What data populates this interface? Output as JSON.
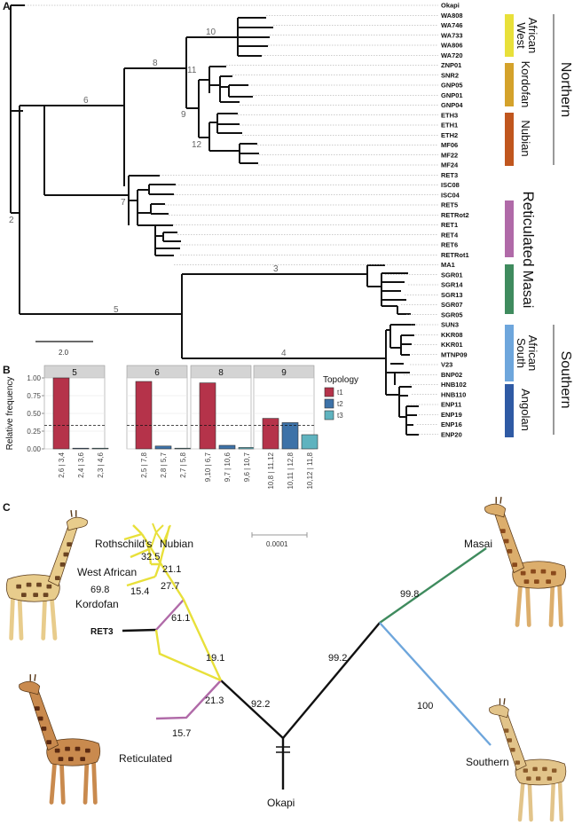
{
  "panels": {
    "a": "A",
    "b": "B",
    "c": "C"
  },
  "tree": {
    "leaves": [
      "Okapi",
      "WA808",
      "WA746",
      "WA733",
      "WA806",
      "WA720",
      "ZNP01",
      "SNR2",
      "GNP05",
      "GNP01",
      "GNP04",
      "ETH3",
      "ETH1",
      "ETH2",
      "MF06",
      "MF22",
      "MF24",
      "RET3",
      "ISC08",
      "ISC04",
      "RET5",
      "RETRot2",
      "RET1",
      "RET4",
      "RET6",
      "RETRot1",
      "MA1",
      "SGR01",
      "SGR14",
      "SGR13",
      "SGR07",
      "SGR05",
      "SUN3",
      "KKR08",
      "KKR01",
      "MTNP09",
      "V23",
      "BNP02",
      "HNB102",
      "HNB110",
      "ENP11",
      "ENP19",
      "ENP16",
      "ENP20"
    ],
    "node_labels": {
      "n2": "2",
      "n3": "3",
      "n4": "4",
      "n5": "5",
      "n6": "6",
      "n7": "7",
      "n8": "8",
      "n9": "9",
      "n10": "10",
      "n11": "11",
      "n12": "12"
    },
    "scale_label": "2.0",
    "clades": {
      "west_african_1": "West",
      "west_african_2": "African",
      "kordofan": "Kordofan",
      "nubian": "Nubian",
      "reticulated": "Reticulated",
      "masai": "Masai",
      "south_african_1": "South",
      "south_african_2": "African",
      "angolan": "Angolan"
    },
    "regions": {
      "northern": "Northern",
      "southern": "Southern"
    },
    "colors": {
      "west_african": "#e8e03a",
      "kordofan": "#d4a22b",
      "nubian": "#c0561e",
      "reticulated": "#b06aa8",
      "masai": "#3f8b5e",
      "south_african": "#6ea6dc",
      "angolan": "#2f5aa4"
    }
  },
  "chart_data": {
    "type": "bar",
    "ylabel": "Relative frequency",
    "ylim": [
      0,
      1.0
    ],
    "yticks": [
      "0.00",
      "0.25",
      "0.50",
      "0.75",
      "1.00"
    ],
    "threshold": 0.333,
    "legend_title": "Topology",
    "series": [
      {
        "name": "t1"
      },
      {
        "name": "t2"
      },
      {
        "name": "t3"
      }
    ],
    "series_colors": [
      "#b5334a",
      "#3d72a8",
      "#5fb3bf"
    ],
    "facets": [
      {
        "label": "5",
        "categories": [
          "2,6 | 3,4",
          "2,4 | 3,6",
          "2,3 | 4,6"
        ],
        "values": [
          1.0,
          0.01,
          0.01
        ]
      },
      {
        "label": "6",
        "categories": [
          "2,5 | 7,8",
          "2,8 | 5,7",
          "2,7 | 5,8"
        ],
        "values": [
          0.95,
          0.04,
          0.01
        ]
      },
      {
        "label": "8",
        "categories": [
          "9,10 | 6,7",
          "9,7 | 10,6",
          "9,6 | 10,7"
        ],
        "values": [
          0.93,
          0.05,
          0.02
        ]
      },
      {
        "label": "9",
        "categories": [
          "10,8 | 11,12",
          "10,11 | 12,8",
          "10,12 | 11,8"
        ],
        "values": [
          0.43,
          0.37,
          0.2
        ]
      }
    ]
  },
  "network": {
    "labels": {
      "rothschilds": "Rothschild's",
      "nubian": "Nubian",
      "west_african": "West African",
      "kordofan": "Kordofan",
      "ret3": "RET3",
      "reticulated": "Reticulated",
      "okapi": "Okapi",
      "masai": "Masai",
      "southern": "Southern"
    },
    "supports": {
      "s1": "32.5",
      "s2": "21.1",
      "s3": "27.7",
      "s4": "69.8",
      "s5": "15.4",
      "s6": "61.1",
      "s7": "19.1",
      "s8": "21.3",
      "s9": "15.7",
      "s10": "92.2",
      "s11": "99.2",
      "s12": "99.8",
      "s13": "100"
    },
    "scale_label": "0.0001",
    "colors": {
      "northern": "#e8e03a",
      "reticulated": "#b06aa8",
      "masai": "#3f8b5e",
      "southern": "#6ea6dc",
      "ret3": "#cc2222"
    }
  }
}
